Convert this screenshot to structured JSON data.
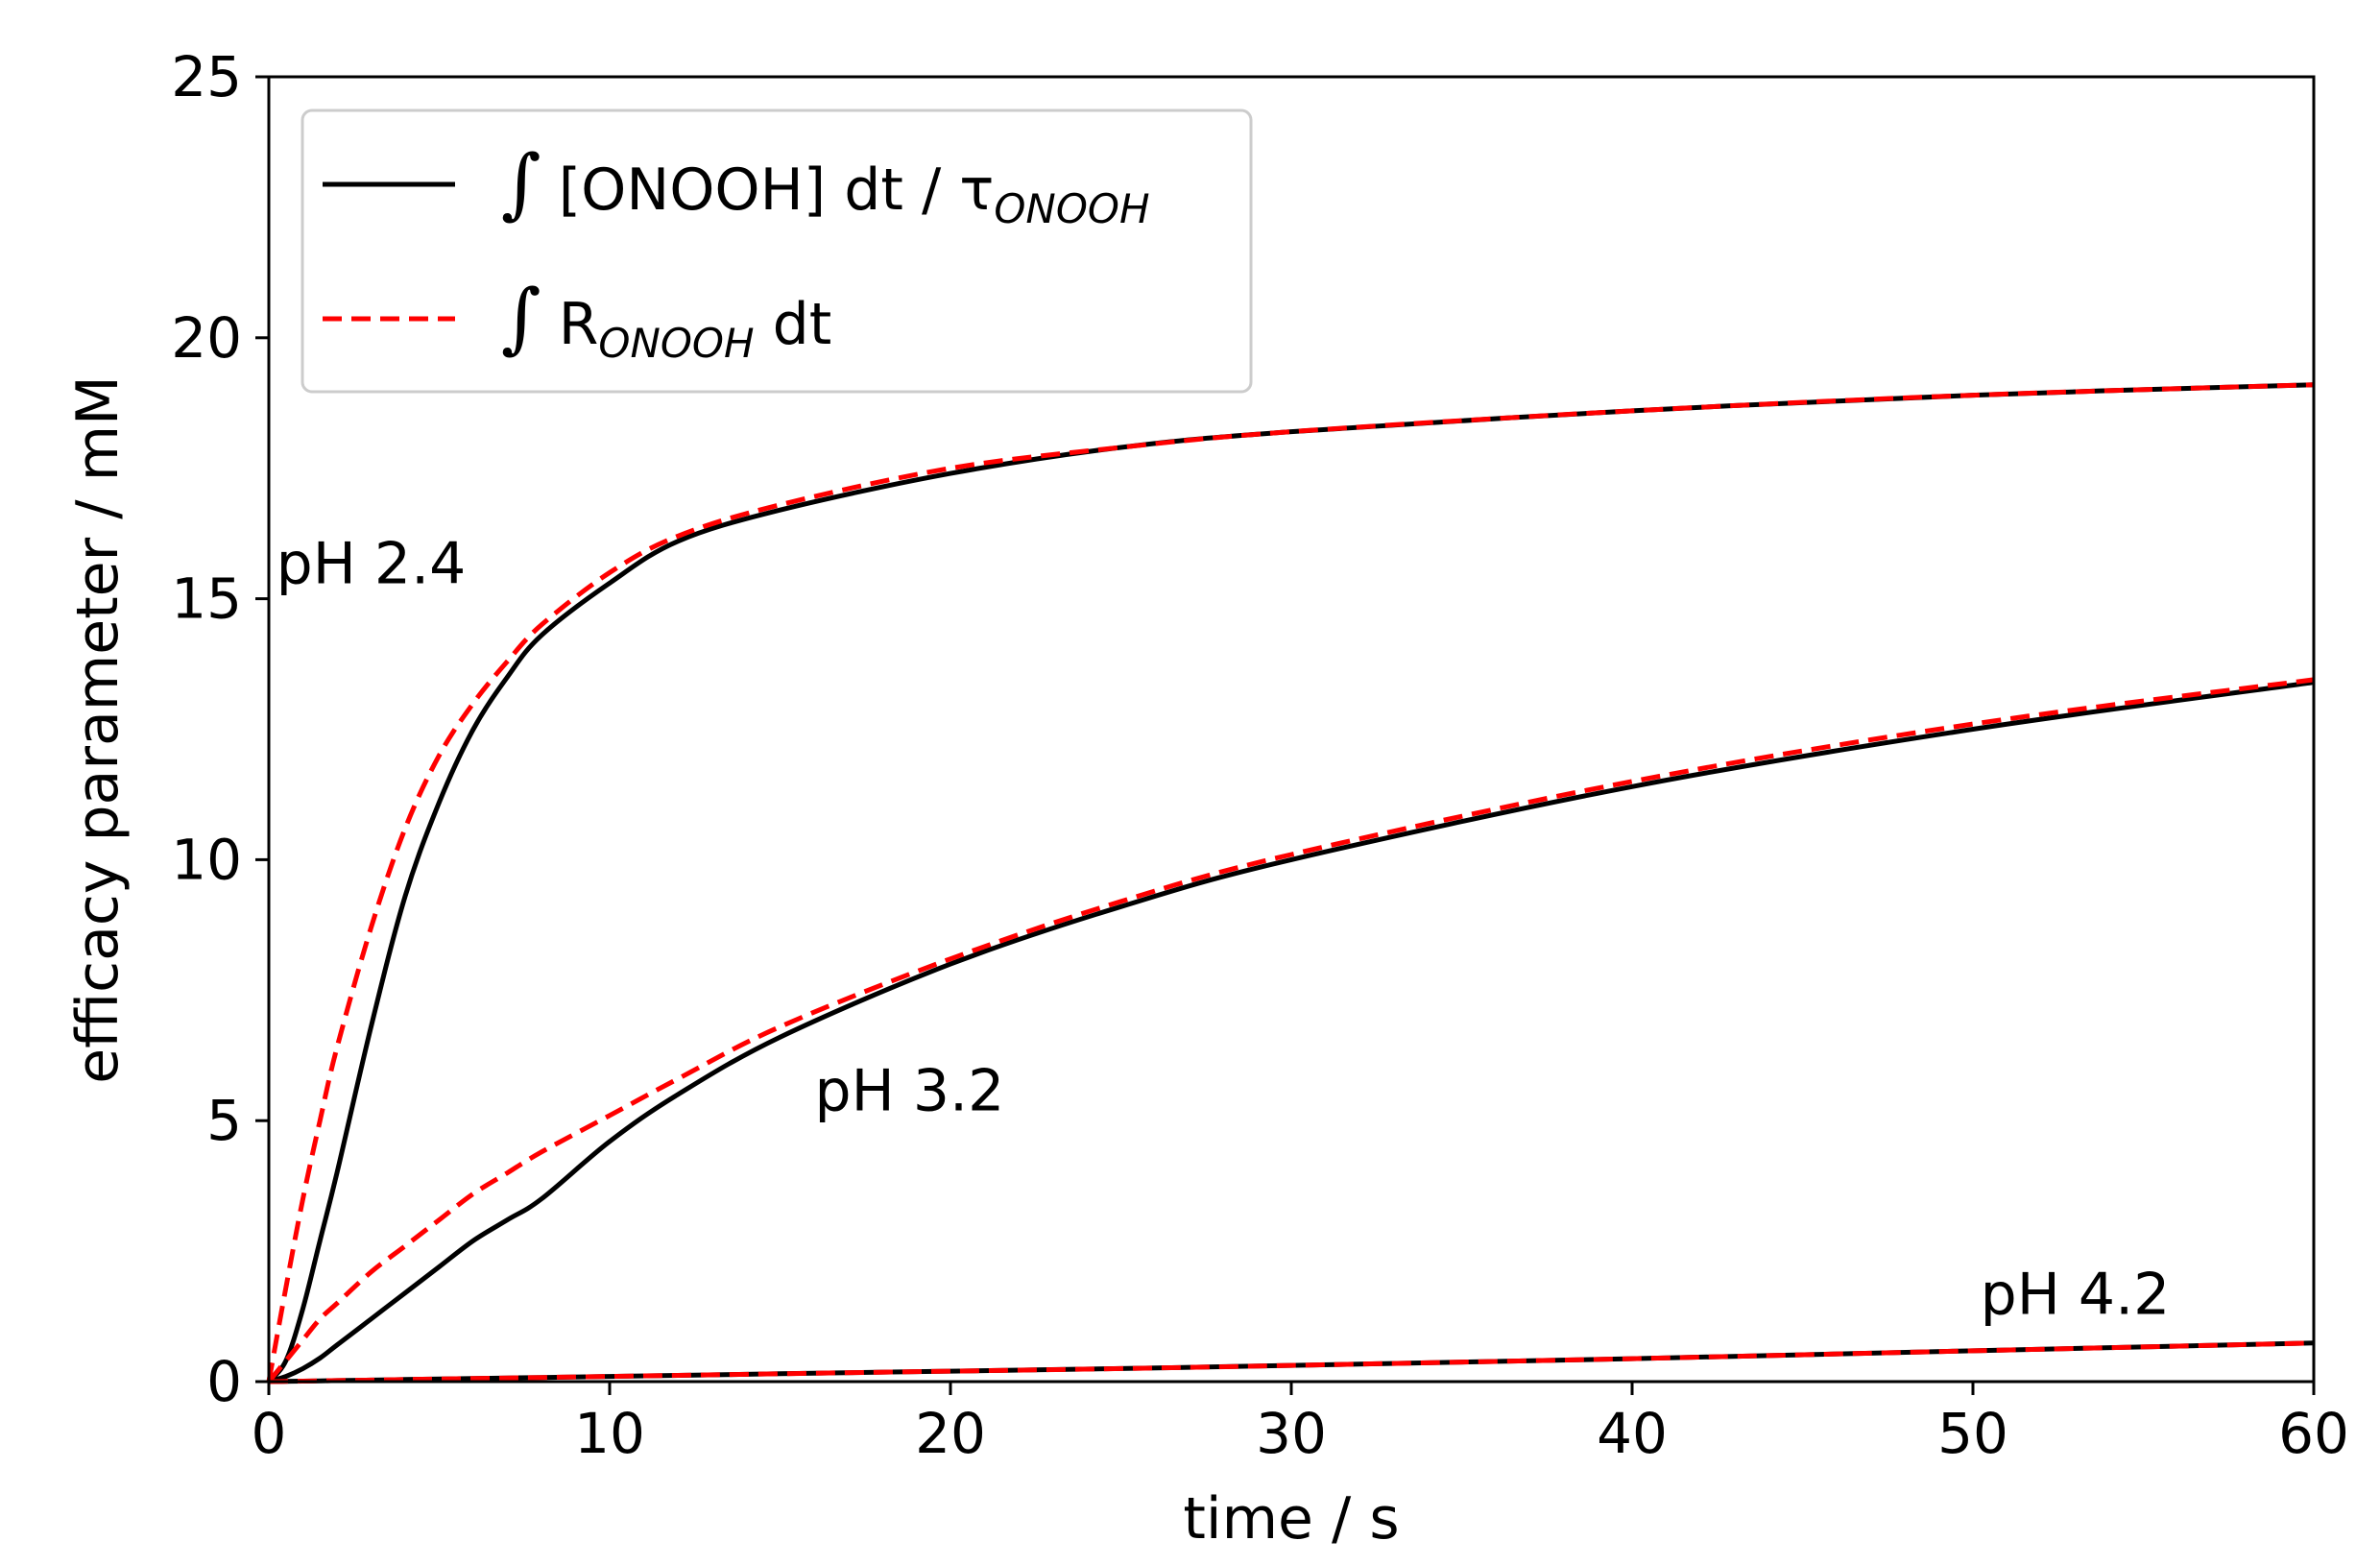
{
  "chart_data": {
    "type": "line",
    "xlabel": "time / s",
    "ylabel": "efficacy parameter / mM",
    "xlim": [
      0,
      60
    ],
    "ylim": [
      0,
      25
    ],
    "xticks": [
      "0",
      "10",
      "20",
      "30",
      "40",
      "50",
      "60"
    ],
    "yticks": [
      "0",
      "5",
      "10",
      "15",
      "20",
      "25"
    ],
    "grid": false,
    "legend_position": "upper-left",
    "legend": [
      {
        "integral": "∫",
        "text_main": "[ONOOH] dt / τ",
        "subscript": "ONOOH",
        "text_after": "",
        "color": "#000000",
        "style": "solid"
      },
      {
        "integral": "∫",
        "text_main": "R",
        "subscript": "ONOOH",
        "text_after": " dt",
        "color": "#ff0000",
        "style": "dashed"
      }
    ],
    "annotations": [
      {
        "text": "pH 2.4",
        "x": 3.0,
        "y": 15.3
      },
      {
        "text": "pH 3.2",
        "x": 18.8,
        "y": 5.2
      },
      {
        "text": "pH 4.2",
        "x": 53.0,
        "y": 1.3
      }
    ],
    "x": [
      0,
      0.5,
      1,
      1.5,
      2,
      3,
      4,
      5,
      6,
      7,
      8,
      10,
      12,
      15,
      20,
      25,
      30,
      40,
      50,
      60
    ],
    "series": [
      {
        "values": [
          0.0,
          0.4,
          1.4,
          2.7,
          4.0,
          6.8,
          9.3,
          11.1,
          12.5,
          13.5,
          14.3,
          15.3,
          16.1,
          16.7,
          17.4,
          17.9,
          18.2,
          18.6,
          18.9,
          19.1
        ],
        "color": "#000000",
        "style": "solid"
      },
      {
        "values": [
          0.0,
          1.8,
          3.5,
          5.0,
          6.4,
          8.7,
          10.6,
          12.0,
          13.0,
          13.8,
          14.5,
          15.5,
          16.2,
          16.8,
          17.5,
          17.9,
          18.2,
          18.6,
          18.9,
          19.1
        ],
        "color": "#ff0000",
        "style": "dashed"
      },
      {
        "values": [
          0.0,
          0.1,
          0.25,
          0.45,
          0.7,
          1.2,
          1.7,
          2.2,
          2.7,
          3.1,
          3.5,
          4.6,
          5.5,
          6.6,
          8.0,
          9.1,
          10.0,
          11.4,
          12.5,
          13.4
        ],
        "color": "#000000",
        "style": "solid"
      },
      {
        "values": [
          0.0,
          0.4,
          0.8,
          1.2,
          1.5,
          2.1,
          2.6,
          3.1,
          3.6,
          4.0,
          4.4,
          5.1,
          5.8,
          6.8,
          8.1,
          9.2,
          10.1,
          11.5,
          12.6,
          13.45
        ],
        "color": "#ff0000",
        "style": "dashed"
      },
      {
        "values": [
          0.0,
          0.005,
          0.01,
          0.015,
          0.02,
          0.03,
          0.04,
          0.05,
          0.06,
          0.07,
          0.08,
          0.1,
          0.12,
          0.15,
          0.2,
          0.25,
          0.31,
          0.44,
          0.59,
          0.74
        ],
        "color": "#000000",
        "style": "solid"
      },
      {
        "values": [
          0.0,
          0.005,
          0.01,
          0.015,
          0.02,
          0.03,
          0.04,
          0.05,
          0.06,
          0.07,
          0.08,
          0.1,
          0.12,
          0.15,
          0.2,
          0.25,
          0.31,
          0.44,
          0.59,
          0.74
        ],
        "color": "#ff0000",
        "style": "dashed"
      }
    ]
  }
}
